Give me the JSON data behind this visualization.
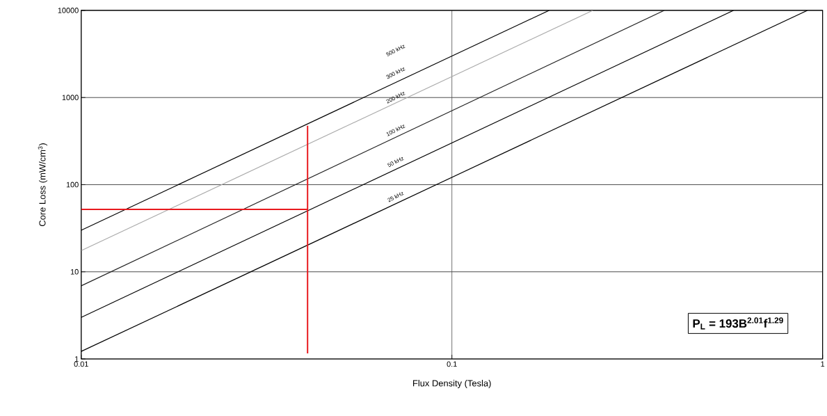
{
  "chart_data": {
    "type": "line",
    "xlabel": "Flux Density (Tesla)",
    "ylabel": "Core Loss (mW/cm$^{3}$)",
    "log": "xy",
    "grid": true,
    "marker": "none",
    "line_style": "solid",
    "xlim": [
      0.01,
      1
    ],
    "ylim": [
      1,
      10000
    ],
    "xticks": [
      0.01,
      0.1,
      1
    ],
    "yticks": [
      1,
      10,
      100,
      1000,
      10000
    ],
    "series": [
      {
        "color": "#000000",
        "x": [
          0.01,
          0.183
        ],
        "values": [
          30,
          10000
        ]
      },
      {
        "color": "#aaaaaa",
        "x": [
          0.01,
          0.24
        ],
        "values": [
          17.5,
          10000
        ]
      },
      {
        "color": "#222222",
        "x": [
          0.01,
          0.374
        ],
        "values": [
          6.9,
          10000
        ]
      },
      {
        "color": "#000000",
        "x": [
          0.01,
          0.575
        ],
        "values": [
          3.0,
          10000
        ]
      },
      {
        "color": "#000000",
        "x": [
          0.01,
          0.91
        ],
        "values": [
          1.22,
          10000
        ]
      },
      {
        "color": "#e8191e",
        "x": [
          0.01,
          0.0408
        ],
        "values": [
          52,
          52
        ]
      },
      {
        "color": "#e8191e",
        "x": [
          0.0408,
          0.0408
        ],
        "values": [
          1.16,
          475
        ]
      }
    ],
    "annotations": [
      "500 kHz",
      "300 kHz",
      "200 kHz",
      "100 kHz",
      "50 kHz",
      "25 kHz",
      "P$_{L}$ = 193B$^{2.01}$f$^{1.29}$"
    ]
  }
}
